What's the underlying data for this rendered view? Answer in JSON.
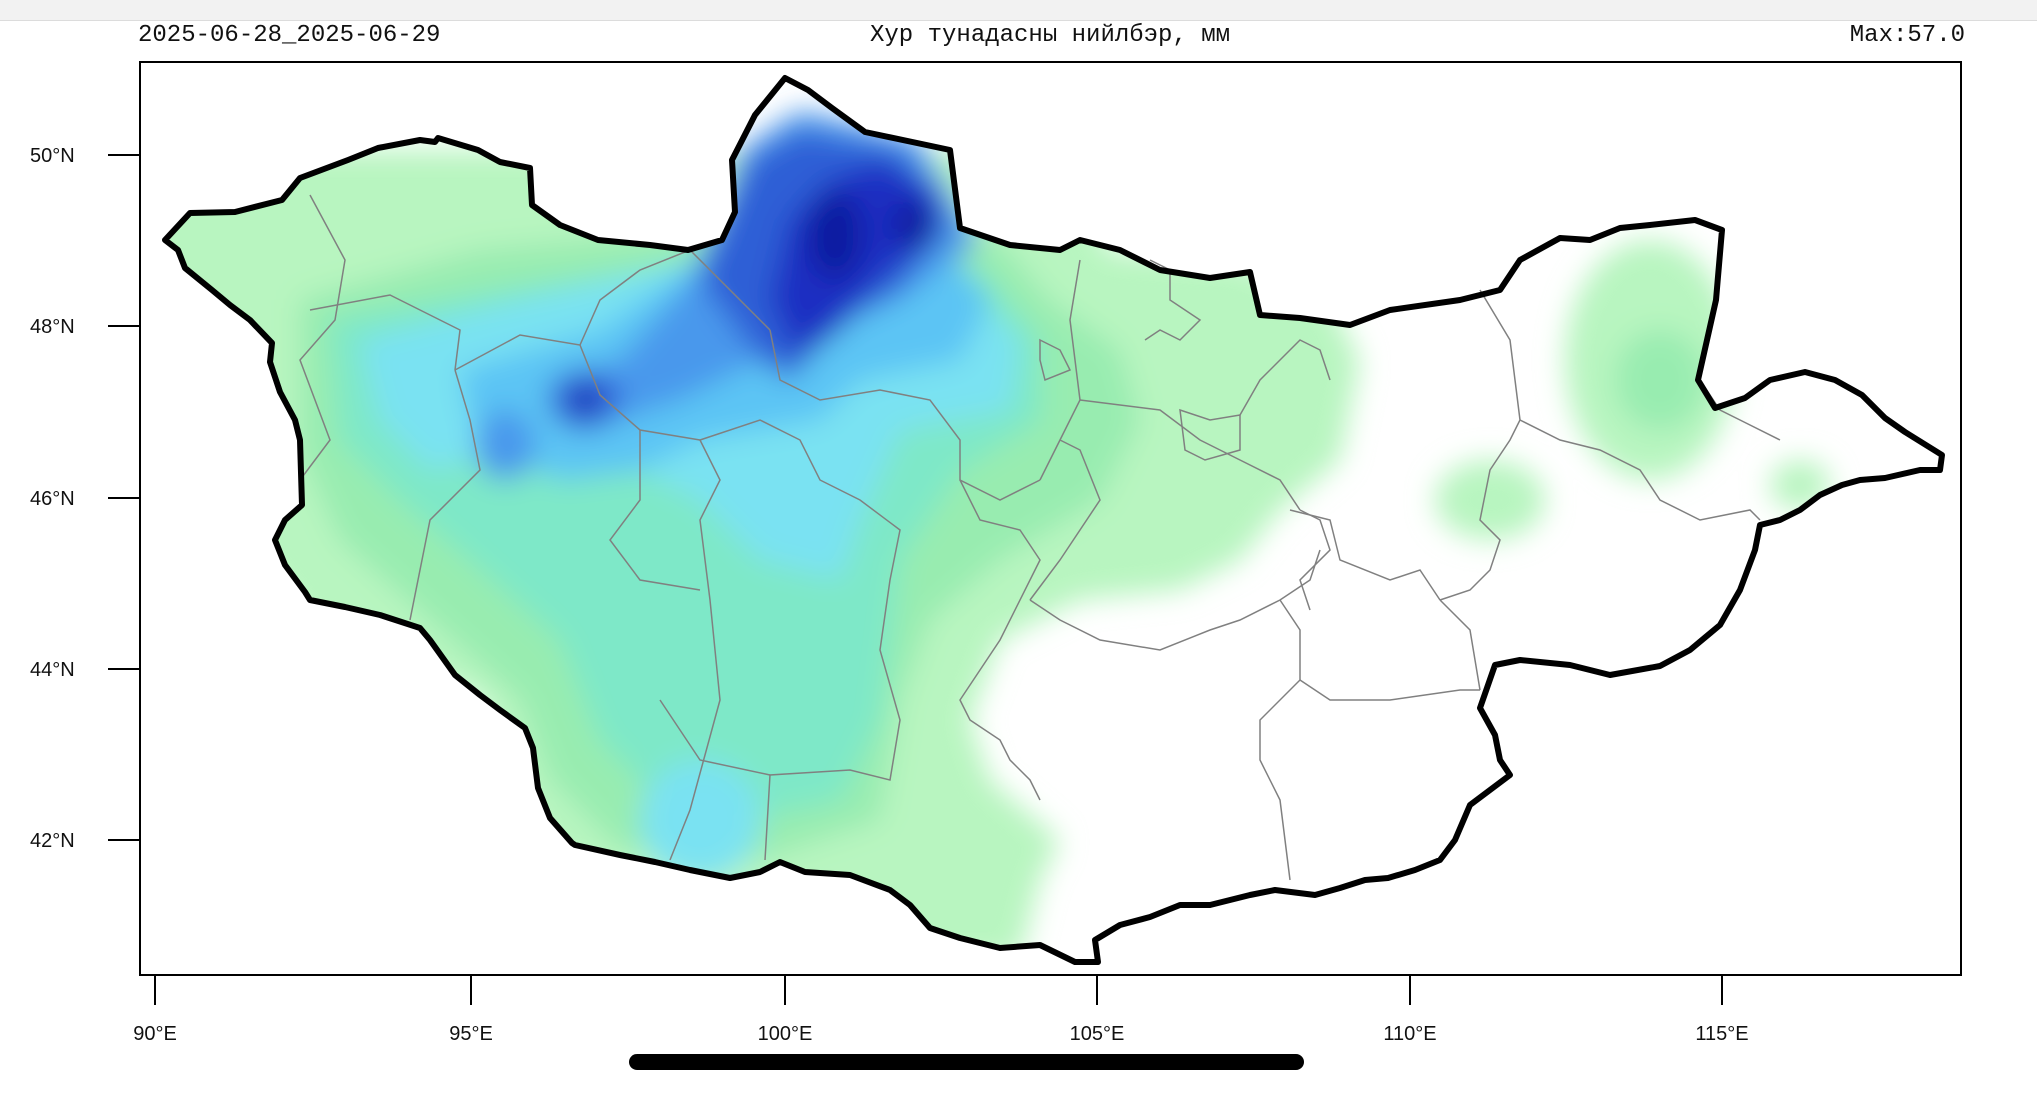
{
  "header": {
    "date_range": "2025-06-28_2025-06-29",
    "title": "Хур тунадасны нийлбэр, мм",
    "max_label": "Max:57.0"
  },
  "axes": {
    "lon_ticks": [
      "90°E",
      "95°E",
      "100°E",
      "105°E",
      "110°E",
      "115°E"
    ],
    "lat_ticks": [
      "50°N",
      "48°N",
      "46°N",
      "44°N",
      "42°N"
    ]
  },
  "palette": {
    "light_green": "#b8f5c0",
    "green": "#98ecb0",
    "aqua_green": "#7ee8c8",
    "cyan": "#7ae2f2",
    "sky": "#5cc4f4",
    "blue": "#4a98ec",
    "mid_blue": "#2f5fd6",
    "deep_blue": "#1a2fc2",
    "navy": "#0f1aa0",
    "border": "#000000",
    "province_border": "#808080"
  }
}
